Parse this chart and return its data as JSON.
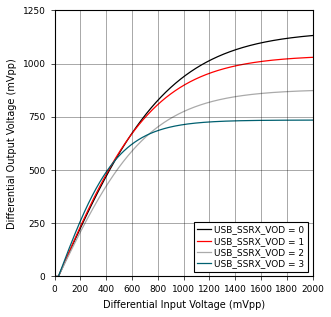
{
  "title": "",
  "xlabel": "Differential Input Voltage (mVpp)",
  "ylabel": "Differential Output Voltage (mVpp)",
  "xlim": [
    0,
    2000
  ],
  "ylim": [
    0,
    1250
  ],
  "xticks": [
    0,
    200,
    400,
    600,
    800,
    1000,
    1200,
    1400,
    1600,
    1800,
    2000
  ],
  "yticks": [
    0,
    250,
    500,
    750,
    1000,
    1250
  ],
  "curves": [
    {
      "label": "USB_SSRX_VOD = 0",
      "color": "#000000",
      "vmax": 1155,
      "tau": 220,
      "x0": 30
    },
    {
      "label": "USB_SSRX_VOD = 1",
      "color": "#ff0000",
      "vmax": 1040,
      "tau": 200,
      "x0": 30
    },
    {
      "label": "USB_SSRX_VOD = 2",
      "color": "#aaaaaa",
      "vmax": 880,
      "tau": 250,
      "x0": 30
    },
    {
      "label": "USB_SSRX_VOD = 3",
      "color": "#006070",
      "vmax": 735,
      "tau": 170,
      "x0": 30
    }
  ],
  "legend_loc": "lower right",
  "background_color": "#ffffff",
  "font_size": 6.5,
  "label_font_size": 7,
  "tick_font_size": 6.5
}
